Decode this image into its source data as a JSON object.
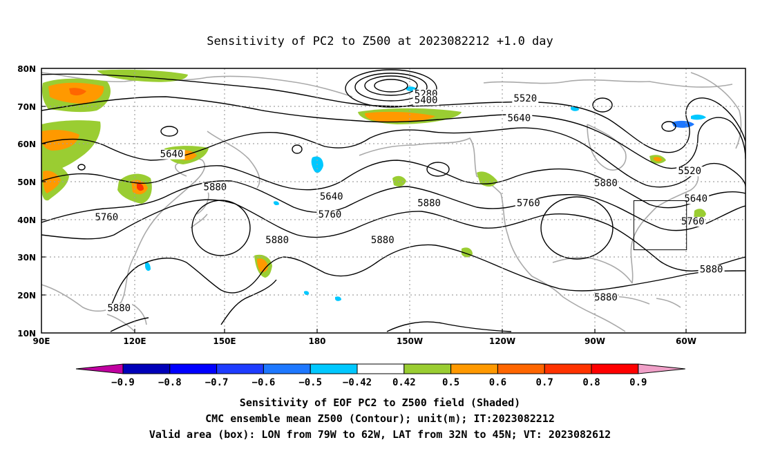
{
  "title": "Sensitivity of PC2 to Z500 at 2023082212 +1.0 day",
  "map": {
    "lat_labels": [
      "80N",
      "70N",
      "60N",
      "50N",
      "40N",
      "30N",
      "20N",
      "10N"
    ],
    "lon_labels": [
      "90E",
      "120E",
      "150E",
      "180",
      "150W",
      "120W",
      "90W",
      "60W"
    ],
    "lon_range": [
      90,
      317
    ],
    "lat_range": [
      10,
      80
    ],
    "grid_lines": true,
    "valid_box": {
      "lon_min": 281,
      "lon_max": 298,
      "lat_min": 32,
      "lat_max": 45
    },
    "contour_labels": [
      {
        "text": "5280",
        "lon": 214,
        "lat": 72.4
      },
      {
        "text": "5400",
        "lon": 214,
        "lat": 70.8
      },
      {
        "text": "5520",
        "lon": 246,
        "lat": 71.2
      },
      {
        "text": "5640",
        "lon": 244,
        "lat": 66.0
      },
      {
        "text": "5640",
        "lon": 132,
        "lat": 56.5
      },
      {
        "text": "5880",
        "lon": 146,
        "lat": 47.7
      },
      {
        "text": "5640",
        "lon": 183.5,
        "lat": 45.3
      },
      {
        "text": "5760",
        "lon": 183,
        "lat": 40.5
      },
      {
        "text": "5880",
        "lon": 215,
        "lat": 43.5
      },
      {
        "text": "5760",
        "lon": 247,
        "lat": 43.5
      },
      {
        "text": "5880",
        "lon": 272,
        "lat": 48.8
      },
      {
        "text": "5520",
        "lon": 299,
        "lat": 52.0
      },
      {
        "text": "5640",
        "lon": 301,
        "lat": 44.7
      },
      {
        "text": "5760",
        "lon": 300,
        "lat": 38.7
      },
      {
        "text": "5880",
        "lon": 306,
        "lat": 26.0
      },
      {
        "text": "5880",
        "lon": 272,
        "lat": 18.6
      },
      {
        "text": "5760",
        "lon": 111,
        "lat": 39.8
      },
      {
        "text": "5880",
        "lon": 166,
        "lat": 33.8
      },
      {
        "text": "5880",
        "lon": 200,
        "lat": 33.8
      },
      {
        "text": "5880",
        "lon": 115,
        "lat": 15.8
      }
    ]
  },
  "colorbar": {
    "levels": [
      "−0.9",
      "−0.8",
      "−0.7",
      "−0.6",
      "−0.5",
      "−0.42",
      "0.42",
      "0.5",
      "0.6",
      "0.7",
      "0.8",
      "0.9"
    ],
    "colors": [
      "#c000a0",
      "#0000b8",
      "#0000ff",
      "#1e3cff",
      "#1e78ff",
      "#00c8ff",
      "#ffffff",
      "#9acd32",
      "#ff9900",
      "#ff6600",
      "#ff3300",
      "#ff0000",
      "#f0a0c8"
    ]
  },
  "captions": {
    "line1": "Sensitivity of EOF PC2 to Z500 field (Shaded)",
    "line2": "CMC ensemble mean Z500 (Contour); unit(m); IT:2023082212",
    "line3": "Valid area (box): LON from 79W to 62W, LAT from 32N to 45N; VT: 2023082612"
  }
}
